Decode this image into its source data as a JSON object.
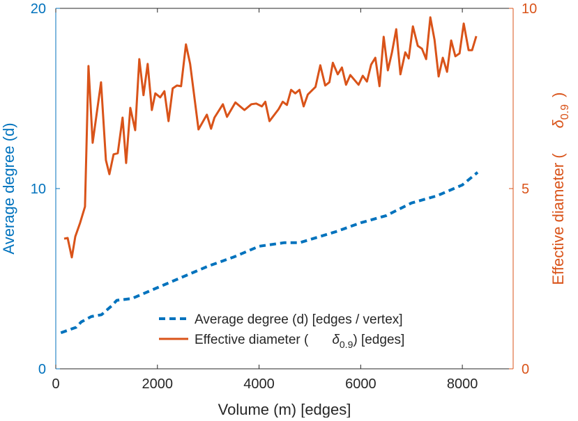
{
  "chart_data": {
    "type": "line",
    "xlabel": "Volume (m) [edges]",
    "ylabel_left": "Average degree (d)",
    "ylabel_right": "Effective diameter (",
    "ylabel_right_symbol": "δ",
    "ylabel_right_sub": "0.9",
    "ylabel_right_close": ")",
    "xlim": [
      0,
      9000
    ],
    "ylim_left": [
      0,
      20
    ],
    "ylim_right": [
      0,
      10
    ],
    "xticks": [
      "0",
      "2000",
      "4000",
      "6000",
      "8000"
    ],
    "xtick_values": [
      0,
      2000,
      4000,
      6000,
      8000
    ],
    "yticks_left": [
      "0",
      "10",
      "20"
    ],
    "ytick_left_values": [
      0,
      10,
      20
    ],
    "yticks_right": [
      "0",
      "5",
      "10"
    ],
    "ytick_right_values": [
      0,
      5,
      10
    ],
    "grid": false,
    "legend_position": "bottom-center",
    "colors": {
      "left": "#0072BD",
      "right": "#D95319",
      "axis": "#262626"
    },
    "series": [
      {
        "name": "Average degree (d) [edges / vertex]",
        "axis": "left",
        "style": "dashed",
        "x": [
          100,
          400,
          500,
          700,
          900,
          1100,
          1200,
          1500,
          2000,
          2500,
          3000,
          3500,
          4000,
          4500,
          4800,
          5500,
          6000,
          6500,
          7000,
          7500,
          8000,
          8300
        ],
        "y": [
          2.0,
          2.3,
          2.6,
          2.9,
          3.0,
          3.5,
          3.8,
          3.9,
          4.5,
          5.1,
          5.7,
          6.2,
          6.8,
          7.0,
          7.0,
          7.6,
          8.1,
          8.5,
          9.2,
          9.6,
          10.2,
          10.9
        ]
      },
      {
        "name_prefix": "Effective diameter (",
        "name_symbol": "δ",
        "name_sub": "0.9",
        "name_suffix": ") [edges]",
        "axis": "right",
        "style": "solid",
        "x": [
          164,
          233,
          315,
          384,
          479,
          575,
          644,
          726,
          890,
          986,
          1055,
          1137,
          1219,
          1315,
          1384,
          1466,
          1562,
          1644,
          1726,
          1808,
          1890,
          1959,
          2055,
          2137,
          2219,
          2301,
          2384,
          2466,
          2562,
          2644,
          2808,
          2973,
          3055,
          3123,
          3288,
          3370,
          3534,
          3712,
          3849,
          3945,
          4055,
          4123,
          4205,
          4384,
          4466,
          4548,
          4630,
          4712,
          4795,
          4877,
          4959,
          5110,
          5205,
          5301,
          5384,
          5452,
          5548,
          5630,
          5712,
          5795,
          5959,
          6041,
          6123,
          6205,
          6288,
          6370,
          6452,
          6534,
          6616,
          6699,
          6781,
          6877,
          6945,
          7027,
          7123,
          7205,
          7288,
          7370,
          7452,
          7534,
          7616,
          7699,
          7781,
          7863,
          7945,
          8027,
          8123,
          8192,
          8274
        ],
        "y": [
          3.61,
          3.63,
          3.09,
          3.67,
          4.05,
          4.5,
          8.4,
          6.27,
          7.95,
          5.79,
          5.4,
          5.95,
          5.98,
          6.97,
          5.71,
          7.24,
          6.62,
          8.59,
          7.59,
          8.46,
          7.18,
          7.64,
          7.53,
          7.7,
          6.87,
          7.78,
          7.86,
          7.84,
          9.0,
          8.46,
          6.64,
          7.05,
          6.66,
          6.97,
          7.34,
          6.99,
          7.39,
          7.18,
          7.34,
          7.36,
          7.28,
          7.41,
          6.87,
          7.2,
          7.41,
          7.32,
          7.74,
          7.64,
          7.74,
          7.28,
          7.61,
          7.82,
          8.42,
          7.86,
          7.95,
          8.49,
          8.17,
          8.36,
          7.88,
          8.15,
          7.88,
          8.13,
          7.97,
          8.44,
          8.63,
          7.84,
          9.21,
          8.28,
          8.78,
          9.42,
          8.17,
          8.78,
          8.61,
          9.5,
          8.96,
          8.88,
          8.59,
          9.75,
          9.13,
          8.11,
          8.63,
          8.24,
          9.11,
          8.67,
          8.75,
          9.58,
          8.84,
          8.84,
          9.23
        ]
      }
    ]
  }
}
